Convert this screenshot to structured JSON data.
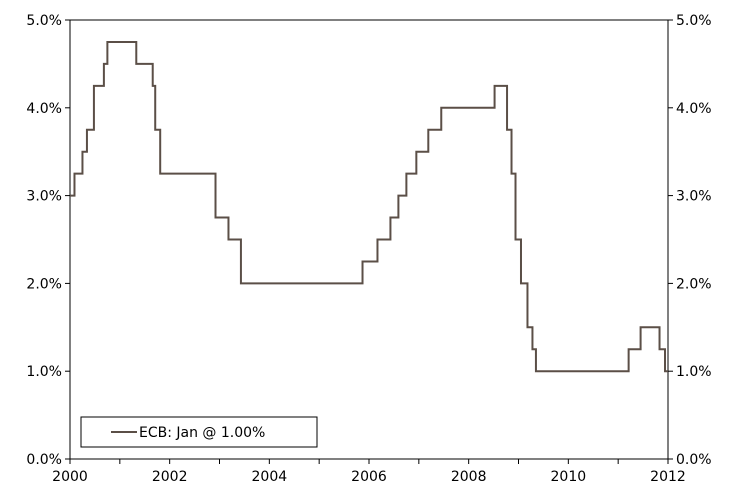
{
  "chart_data": {
    "type": "line",
    "title": "",
    "xlabel": "",
    "ylabel": "",
    "xlim": [
      2000.0,
      2012.0
    ],
    "ylim": [
      0.0,
      5.0
    ],
    "x_ticks": [
      2000,
      2002,
      2004,
      2006,
      2008,
      2010,
      2012
    ],
    "x_tick_labels": [
      "2000",
      "2002",
      "2004",
      "2006",
      "2008",
      "2010",
      "2012"
    ],
    "y_ticks": [
      0,
      1,
      2,
      3,
      4,
      5
    ],
    "y_tick_labels": [
      "0.0%",
      "1.0%",
      "2.0%",
      "3.0%",
      "4.0%",
      "5.0%"
    ],
    "grid": false,
    "legend_position": "bottom-left",
    "line_color": "#5b4f47",
    "series": [
      {
        "name": "ECB: Jan @ 1.00%",
        "step": "post",
        "x": [
          2000.0,
          2000.09,
          2000.25,
          2000.34,
          2000.48,
          2000.68,
          2000.75,
          2001.33,
          2001.66,
          2001.71,
          2001.81,
          2002.92,
          2003.18,
          2003.43,
          2005.87,
          2006.17,
          2006.43,
          2006.59,
          2006.75,
          2006.95,
          2007.19,
          2007.45,
          2008.52,
          2008.77,
          2008.86,
          2008.94,
          2009.05,
          2009.18,
          2009.28,
          2009.35,
          2011.21,
          2011.45,
          2011.83,
          2011.94,
          2012.0
        ],
        "y": [
          3.0,
          3.25,
          3.5,
          3.75,
          4.25,
          4.5,
          4.75,
          4.5,
          4.25,
          3.75,
          3.25,
          2.75,
          2.5,
          2.0,
          2.25,
          2.5,
          2.75,
          3.0,
          3.25,
          3.5,
          3.75,
          4.0,
          4.25,
          3.75,
          3.25,
          2.5,
          2.0,
          1.5,
          1.25,
          1.0,
          1.25,
          1.5,
          1.25,
          1.0,
          1.0
        ]
      }
    ]
  }
}
